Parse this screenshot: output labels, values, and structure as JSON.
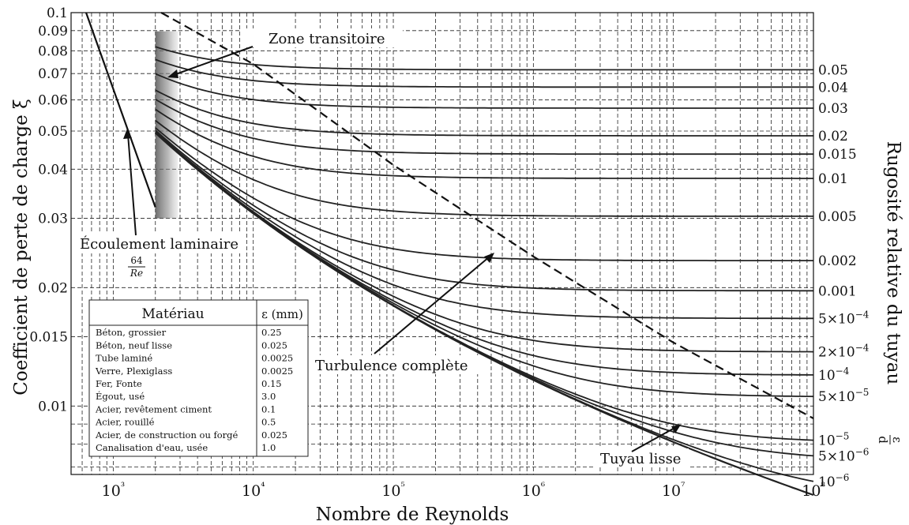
{
  "chart_data": {
    "type": "line",
    "title": "",
    "xlabel": "Nombre de Reynolds",
    "ylabel": "Coefficient de perte de charge ξ",
    "y2label": "Rugosité relative du tuyau",
    "y2label_fraction": {
      "num": "ε",
      "den": "d"
    },
    "xscale": "log",
    "yscale": "log",
    "xlim": [
      500,
      100000000
    ],
    "ylim": [
      0.0067,
      0.1
    ],
    "grid": true,
    "x_ticks": [
      {
        "value": 1000,
        "label": "10³"
      },
      {
        "value": 10000,
        "label": "10⁴"
      },
      {
        "value": 100000,
        "label": "10⁵"
      },
      {
        "value": 1000000,
        "label": "10⁶"
      },
      {
        "value": 10000000,
        "label": "10⁷"
      },
      {
        "value": 100000000,
        "label": "10⁸"
      }
    ],
    "y_ticks": [
      {
        "value": 0.1,
        "label": "0.1"
      },
      {
        "value": 0.09,
        "label": "0.09"
      },
      {
        "value": 0.08,
        "label": "0.08"
      },
      {
        "value": 0.07,
        "label": "0.07"
      },
      {
        "value": 0.06,
        "label": "0.06"
      },
      {
        "value": 0.05,
        "label": "0.05"
      },
      {
        "value": 0.04,
        "label": "0.04"
      },
      {
        "value": 0.03,
        "label": "0.03"
      },
      {
        "value": 0.02,
        "label": "0.02"
      },
      {
        "value": 0.015,
        "label": "0.015"
      },
      {
        "value": 0.01,
        "label": "0.01"
      }
    ],
    "laminar": {
      "re_start": 640,
      "re_end": 2000
    },
    "roughness_curves": [
      {
        "eps": 0.05,
        "label": "0.05"
      },
      {
        "eps": 0.04,
        "label": "0.04"
      },
      {
        "eps": 0.03,
        "label": "0.03"
      },
      {
        "eps": 0.02,
        "label": "0.02"
      },
      {
        "eps": 0.015,
        "label": "0.015"
      },
      {
        "eps": 0.01,
        "label": "0.01"
      },
      {
        "eps": 0.005,
        "label": "0.005"
      },
      {
        "eps": 0.002,
        "label": "0.002"
      },
      {
        "eps": 0.001,
        "label": "0.001"
      },
      {
        "eps": 0.0005,
        "label": "5×10⁻⁴"
      },
      {
        "eps": 0.0002,
        "label": "2×10⁻⁴"
      },
      {
        "eps": 0.0001,
        "label": "10⁻⁴"
      },
      {
        "eps": 5e-05,
        "label": "5×10⁻⁵"
      },
      {
        "eps": 1e-05,
        "label": "10⁻⁵"
      },
      {
        "eps": 5e-06,
        "label": "5×10⁻⁶"
      },
      {
        "eps": 1e-06,
        "label": "10⁻⁶"
      },
      {
        "eps": 0,
        "label": ""
      }
    ],
    "turbulent_re_start": 2000,
    "transition_zone": {
      "re_from": 2000,
      "re_to": 2900
    },
    "complete_turbulence_boundary": {
      "x": [
        2200,
        10000,
        100000,
        1000000,
        10000000,
        100000000
      ],
      "y": [
        0.1,
        0.074,
        0.041,
        0.024,
        0.0145,
        0.0093
      ]
    },
    "annotations": {
      "zone_transitoire": "Zone transitoire",
      "ecoulement_laminaire": "Écoulement laminaire",
      "laminar_formula_num": "64",
      "laminar_formula_den": "Re",
      "turbulence_complete": "Turbulence complète",
      "tuyau_lisse": "Tuyau lisse"
    }
  },
  "material_table": {
    "headers": [
      "Matériau",
      "ε (mm)"
    ],
    "rows": [
      [
        "Béton, grossier",
        "0.25"
      ],
      [
        "Béton, neuf lisse",
        "0.025"
      ],
      [
        "Tube laminé",
        "0.0025"
      ],
      [
        "Verre, Plexiglass",
        "0.0025"
      ],
      [
        "Fer, Fonte",
        "0.15"
      ],
      [
        "Égout, usé",
        "3.0"
      ],
      [
        "Acier, revêtement ciment",
        "0.1"
      ],
      [
        "Acier, rouillé",
        "0.5"
      ],
      [
        "Acier, de construction ou forgé",
        "0.025"
      ],
      [
        "Canalisation d'eau, usée",
        "1.0"
      ]
    ]
  }
}
